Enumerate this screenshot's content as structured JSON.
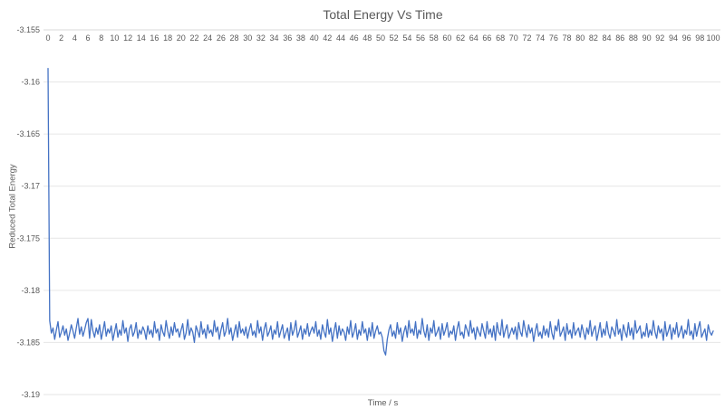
{
  "chart_data": {
    "type": "line",
    "title": "Total Energy Vs Time",
    "xlabel": "Time / s",
    "ylabel": "Reduced Total Energy",
    "xlim": [
      0,
      100
    ],
    "ylim": [
      -3.19,
      -3.155
    ],
    "grid": "horizontal",
    "legend": "none",
    "background": "#ffffff",
    "line_color": "#4472C4",
    "gridline_color": "#E6E6E6",
    "axis_line_color": "#D9D9D9",
    "text_color": "#595959",
    "x_ticks": [
      0,
      2,
      4,
      6,
      8,
      10,
      12,
      14,
      16,
      18,
      20,
      22,
      24,
      26,
      28,
      30,
      32,
      34,
      36,
      38,
      40,
      42,
      44,
      46,
      48,
      50,
      52,
      54,
      56,
      58,
      60,
      62,
      64,
      66,
      68,
      70,
      72,
      74,
      76,
      78,
      80,
      82,
      84,
      86,
      88,
      90,
      92,
      94,
      96,
      98,
      100
    ],
    "y_tick_labels": [
      "-3.155",
      "-3.16",
      "-3.165",
      "-3.17",
      "-3.175",
      "-3.18",
      "-3.185",
      "-3.19"
    ],
    "series": [
      {
        "x_start": 0,
        "x_step": 0.25,
        "y": [
          -3.1587,
          -3.1829,
          -3.1841,
          -3.1836,
          -3.1847,
          -3.1838,
          -3.183,
          -3.1845,
          -3.184,
          -3.1834,
          -3.1843,
          -3.1837,
          -3.1848,
          -3.1841,
          -3.1833,
          -3.1839,
          -3.1846,
          -3.1836,
          -3.1827,
          -3.1842,
          -3.1835,
          -3.1844,
          -3.1838,
          -3.1831,
          -3.1827,
          -3.1846,
          -3.1828,
          -3.1839,
          -3.1845,
          -3.1836,
          -3.1842,
          -3.1833,
          -3.1847,
          -3.1839,
          -3.183,
          -3.1844,
          -3.1837,
          -3.1841,
          -3.1834,
          -3.1848,
          -3.184,
          -3.1832,
          -3.1845,
          -3.1838,
          -3.1843,
          -3.1829,
          -3.1841,
          -3.1836,
          -3.1849,
          -3.1837,
          -3.1833,
          -3.1844,
          -3.184,
          -3.1831,
          -3.1846,
          -3.1838,
          -3.1842,
          -3.1835,
          -3.1839,
          -3.1847,
          -3.1834,
          -3.1842,
          -3.1838,
          -3.1845,
          -3.183,
          -3.1841,
          -3.1837,
          -3.1848,
          -3.1833,
          -3.184,
          -3.1844,
          -3.1829,
          -3.1839,
          -3.1846,
          -3.1835,
          -3.1843,
          -3.1831,
          -3.184,
          -3.1837,
          -3.1845,
          -3.1838,
          -3.1832,
          -3.1847,
          -3.1841,
          -3.1828,
          -3.1843,
          -3.1836,
          -3.184,
          -3.185,
          -3.1834,
          -3.1839,
          -3.1845,
          -3.183,
          -3.1842,
          -3.1837,
          -3.1846,
          -3.1833,
          -3.1841,
          -3.1838,
          -3.1844,
          -3.1829,
          -3.184,
          -3.1835,
          -3.1847,
          -3.1838,
          -3.1831,
          -3.1844,
          -3.1839,
          -3.1827,
          -3.1842,
          -3.1836,
          -3.1848,
          -3.184,
          -3.1833,
          -3.1845,
          -3.183,
          -3.1841,
          -3.1837,
          -3.1843,
          -3.1835,
          -3.1846,
          -3.1838,
          -3.1832,
          -3.1843,
          -3.1839,
          -3.1845,
          -3.1829,
          -3.1841,
          -3.1835,
          -3.1848,
          -3.1837,
          -3.1831,
          -3.1844,
          -3.184,
          -3.1834,
          -3.1847,
          -3.1838,
          -3.1842,
          -3.183,
          -3.1845,
          -3.1839,
          -3.1833,
          -3.1846,
          -3.1841,
          -3.1836,
          -3.1848,
          -3.1831,
          -3.1843,
          -3.1838,
          -3.1829,
          -3.1845,
          -3.184,
          -3.1834,
          -3.1847,
          -3.1837,
          -3.1842,
          -3.1832,
          -3.1844,
          -3.1839,
          -3.1835,
          -3.1841,
          -3.183,
          -3.1844,
          -3.1838,
          -3.1847,
          -3.1833,
          -3.184,
          -3.1845,
          -3.1828,
          -3.1842,
          -3.1836,
          -3.1849,
          -3.1839,
          -3.1831,
          -3.1846,
          -3.1834,
          -3.1843,
          -3.1837,
          -3.184,
          -3.1848,
          -3.1835,
          -3.1842,
          -3.1829,
          -3.1845,
          -3.184,
          -3.1832,
          -3.1847,
          -3.1838,
          -3.1843,
          -3.183,
          -3.1841,
          -3.1837,
          -3.1848,
          -3.1836,
          -3.1844,
          -3.1831,
          -3.1846,
          -3.1839,
          -3.1834,
          -3.1842,
          -3.184,
          -3.1845,
          -3.1858,
          -3.1862,
          -3.1847,
          -3.1838,
          -3.1833,
          -3.1844,
          -3.1839,
          -3.1846,
          -3.1831,
          -3.1842,
          -3.1836,
          -3.1849,
          -3.184,
          -3.1834,
          -3.1845,
          -3.1829,
          -3.1841,
          -3.1837,
          -3.1843,
          -3.183,
          -3.1846,
          -3.1838,
          -3.1842,
          -3.1827,
          -3.1839,
          -3.1845,
          -3.1833,
          -3.1848,
          -3.1836,
          -3.1841,
          -3.1829,
          -3.1844,
          -3.184,
          -3.1835,
          -3.1847,
          -3.1832,
          -3.1843,
          -3.1838,
          -3.1831,
          -3.1845,
          -3.1839,
          -3.1842,
          -3.1834,
          -3.1848,
          -3.1837,
          -3.183,
          -3.1843,
          -3.184,
          -3.1846,
          -3.1833,
          -3.1838,
          -3.1844,
          -3.1829,
          -3.1841,
          -3.1836,
          -3.1847,
          -3.1835,
          -3.184,
          -3.1844,
          -3.1832,
          -3.1839,
          -3.1846,
          -3.183,
          -3.1842,
          -3.1837,
          -3.1845,
          -3.1834,
          -3.1848,
          -3.1831,
          -3.184,
          -3.1843,
          -3.1828,
          -3.1845,
          -3.1838,
          -3.1833,
          -3.1846,
          -3.1841,
          -3.1836,
          -3.1842,
          -3.1835,
          -3.1847,
          -3.1831,
          -3.184,
          -3.1844,
          -3.1829,
          -3.1838,
          -3.1845,
          -3.1833,
          -3.1841,
          -3.1836,
          -3.1849,
          -3.1839,
          -3.1832,
          -3.1844,
          -3.184,
          -3.1846,
          -3.1834,
          -3.1843,
          -3.1837,
          -3.1845,
          -3.183,
          -3.1841,
          -3.1847,
          -3.1834,
          -3.1839,
          -3.1828,
          -3.1844,
          -3.184,
          -3.1835,
          -3.1848,
          -3.1832,
          -3.1842,
          -3.1838,
          -3.1846,
          -3.1831,
          -3.1843,
          -3.1839,
          -3.1836,
          -3.1845,
          -3.1833,
          -3.184,
          -3.1847,
          -3.1836,
          -3.1842,
          -3.1829,
          -3.1844,
          -3.1838,
          -3.1834,
          -3.1848,
          -3.184,
          -3.1831,
          -3.1845,
          -3.1837,
          -3.1843,
          -3.183,
          -3.1841,
          -3.1846,
          -3.1835,
          -3.1839,
          -3.1844,
          -3.1828,
          -3.1842,
          -3.1837,
          -3.1848,
          -3.1833,
          -3.184,
          -3.1845,
          -3.1831,
          -3.1843,
          -3.1836,
          -3.1847,
          -3.1829,
          -3.1841,
          -3.1838,
          -3.1834,
          -3.1846,
          -3.184,
          -3.1844,
          -3.1832,
          -3.1845,
          -3.1838,
          -3.1843,
          -3.1829,
          -3.184,
          -3.1846,
          -3.1834,
          -3.1841,
          -3.1837,
          -3.1848,
          -3.183,
          -3.1844,
          -3.1839,
          -3.1833,
          -3.1847,
          -3.1836,
          -3.1842,
          -3.1831,
          -3.1845,
          -3.184,
          -3.1834,
          -3.1846,
          -3.1838,
          -3.1842,
          -3.1828,
          -3.1843,
          -3.1839,
          -3.1847,
          -3.1832,
          -3.1844,
          -3.1836,
          -3.183,
          -3.1845,
          -3.1841,
          -3.1837,
          -3.1848,
          -3.1833,
          -3.184,
          -3.1843,
          -3.1839
        ]
      }
    ]
  }
}
